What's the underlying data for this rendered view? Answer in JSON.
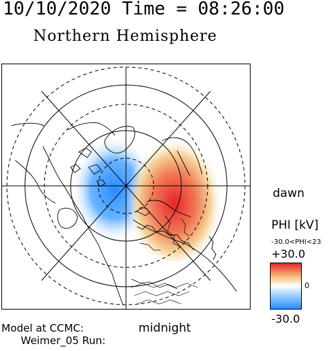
{
  "header": {
    "datetime": "10/10/2020 Time = 08:26:00",
    "hemisphere": "Northern Hemisphere"
  },
  "labels": {
    "dawn": "dawn",
    "midnight": "midnight",
    "model_line1": "Model at CCMC:",
    "model_line2": "Weimer_05 Run:"
  },
  "colorbar": {
    "title": "PHI [kV]",
    "range_text": "-30.0<PHI<23",
    "max": "+30.0",
    "mid": "0",
    "min": "-30.0",
    "colors": {
      "negative": "#2a8cff",
      "zero": "#ffffff",
      "positive": "#e8242b",
      "mid_positive": "#f5c27a"
    }
  },
  "map": {
    "projection": "polar-stereographic-north",
    "grid": "on",
    "potential_cells": [
      {
        "sign": "negative",
        "sector": "dusk"
      },
      {
        "sign": "positive",
        "sector": "dawn"
      }
    ]
  }
}
